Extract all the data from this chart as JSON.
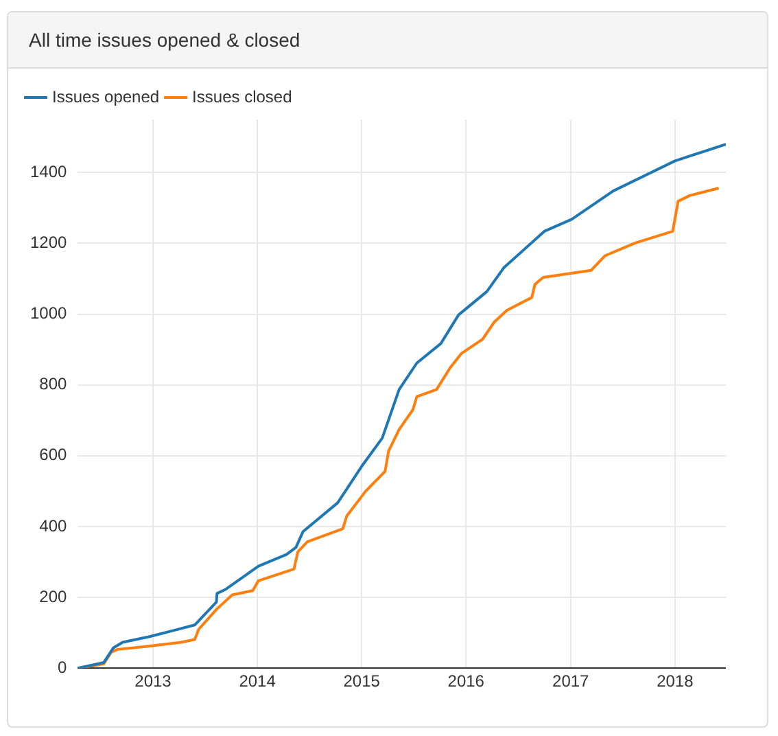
{
  "chart_data": {
    "type": "line",
    "title": "All time issues opened & closed",
    "xlim": [
      "2012-04-13",
      "2018-06-28"
    ],
    "xticks": [
      "2013",
      "2014",
      "2015",
      "2016",
      "2017",
      "2018"
    ],
    "ylim": [
      0,
      1550
    ],
    "yticks": [
      0,
      200,
      400,
      600,
      800,
      1000,
      1200,
      1400
    ],
    "grid": true,
    "legend": "top left",
    "marker": "none",
    "line_style": "solid",
    "series": [
      {
        "name": "Issues opened",
        "color": "#1f77b4",
        "x": [
          "2012-04-13",
          "2012-07-13",
          "2012-08-15",
          "2012-09-17",
          "2012-12-20",
          "2013-05-27",
          "2013-08-11",
          "2013-08-13",
          "2013-09-13",
          "2014-01-05",
          "2014-04-13",
          "2014-05-16",
          "2014-06-10",
          "2014-10-09",
          "2015-01-01",
          "2015-03-14",
          "2015-05-12",
          "2015-07-13",
          "2015-10-05",
          "2015-12-06",
          "2016-03-14",
          "2016-05-12",
          "2016-10-01",
          "2017-01-05",
          "2017-05-30",
          "2018-01-01",
          "2018-06-28"
        ],
        "values": [
          0,
          16,
          57,
          73,
          89,
          122,
          187,
          211,
          223,
          288,
          321,
          341,
          386,
          467,
          570,
          650,
          787,
          862,
          917,
          998,
          1064,
          1131,
          1234,
          1268,
          1348,
          1433,
          1480
        ]
      },
      {
        "name": "Issues closed",
        "color": "#ff7f0e",
        "x": [
          "2012-04-13",
          "2012-07-13",
          "2012-08-08",
          "2012-08-30",
          "2012-12-05",
          "2013-04-09",
          "2013-05-27",
          "2013-06-10",
          "2013-08-11",
          "2013-10-05",
          "2013-12-16",
          "2014-01-05",
          "2014-05-09",
          "2014-05-23",
          "2014-06-25",
          "2014-10-27",
          "2014-11-10",
          "2015-01-15",
          "2015-03-24",
          "2015-04-05",
          "2015-05-12",
          "2015-06-29",
          "2015-07-13",
          "2015-09-20",
          "2015-11-06",
          "2015-12-16",
          "2016-02-28",
          "2016-04-09",
          "2016-05-23",
          "2016-08-18",
          "2016-08-29",
          "2016-09-27",
          "2017-03-14",
          "2017-05-01",
          "2017-08-15",
          "2017-12-24",
          "2018-01-12",
          "2018-02-21",
          "2018-06-03"
        ],
        "values": [
          0,
          12,
          45,
          53,
          61,
          73,
          81,
          110,
          166,
          207,
          219,
          247,
          280,
          329,
          357,
          394,
          430,
          500,
          556,
          613,
          674,
          730,
          767,
          787,
          848,
          889,
          929,
          978,
          1011,
          1047,
          1084,
          1104,
          1124,
          1165,
          1201,
          1234,
          1319,
          1335,
          1356
        ]
      }
    ]
  }
}
